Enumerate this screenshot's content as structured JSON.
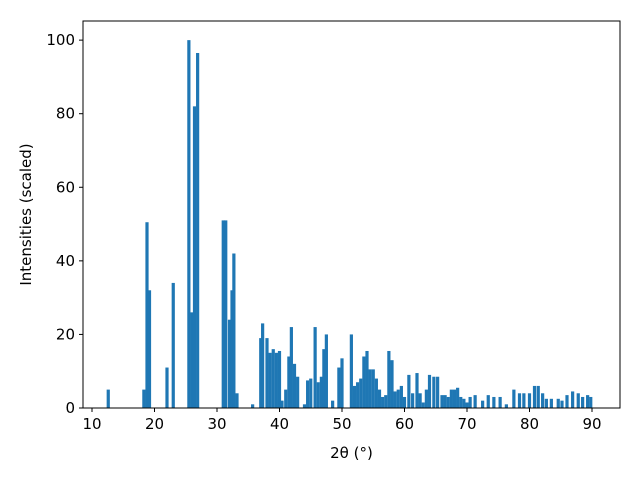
{
  "chart_data": {
    "type": "bar",
    "xlabel": "2θ (°)",
    "ylabel": "Intensities (scaled)",
    "color": "#1f77b4",
    "xlim": [
      8.56,
      94.48
    ],
    "ylim": [
      0,
      105.2
    ],
    "xticks": [
      10,
      20,
      30,
      40,
      50,
      60,
      70,
      80,
      90
    ],
    "yticks": [
      0,
      20,
      40,
      60,
      80,
      100
    ],
    "x": [
      12.6,
      18.3,
      18.8,
      19.2,
      22.0,
      23.0,
      25.5,
      26.0,
      26.4,
      26.9,
      31.0,
      31.4,
      32.0,
      32.4,
      32.7,
      33.2,
      35.7,
      37.0,
      37.3,
      38.0,
      38.5,
      39.0,
      39.5,
      40.0,
      40.4,
      41.0,
      41.5,
      41.9,
      42.4,
      42.9,
      44.0,
      44.5,
      45.0,
      45.7,
      46.2,
      46.7,
      47.1,
      47.5,
      48.5,
      49.5,
      50.0,
      51.5,
      52.0,
      52.5,
      53.0,
      53.5,
      54.0,
      54.5,
      55.0,
      55.5,
      56.0,
      56.5,
      57.0,
      57.5,
      58.0,
      58.5,
      59.0,
      59.5,
      60.0,
      60.7,
      61.3,
      62.0,
      62.5,
      63.0,
      63.5,
      64.0,
      64.7,
      65.3,
      66.0,
      66.5,
      67.0,
      67.5,
      68.0,
      68.5,
      69.0,
      69.5,
      70.0,
      70.5,
      71.3,
      72.5,
      73.4,
      74.3,
      75.3,
      76.3,
      77.5,
      78.4,
      79.1,
      80.0,
      80.8,
      81.4,
      82.1,
      82.7,
      83.5,
      84.6,
      85.2,
      86.0,
      86.9,
      87.8,
      88.5,
      89.3,
      89.8
    ],
    "values": [
      5,
      5,
      50.5,
      32,
      11,
      34,
      100,
      26,
      82,
      96.5,
      51,
      51,
      24,
      32,
      42,
      4,
      1,
      19,
      23,
      19,
      15,
      16,
      15,
      15.5,
      2,
      5,
      14,
      22,
      12,
      8.5,
      1,
      7.5,
      8,
      22,
      7,
      8.5,
      16,
      20,
      2,
      11,
      13.5,
      20,
      6,
      7,
      8,
      14,
      15.5,
      10.5,
      10.5,
      8,
      5,
      3,
      3.5,
      15.5,
      13,
      4.5,
      5,
      6,
      3,
      9,
      4,
      9.5,
      4,
      1.5,
      5,
      9,
      8.5,
      8.5,
      3.5,
      3.5,
      3,
      5,
      5,
      5.5,
      3,
      2.5,
      1.5,
      3,
      3.5,
      2,
      3.5,
      3,
      3,
      1,
      5,
      4,
      4,
      4,
      6,
      6,
      4,
      2.5,
      2.5,
      2.5,
      2,
      3.5,
      4.5,
      4,
      3,
      3.5,
      3
    ]
  }
}
